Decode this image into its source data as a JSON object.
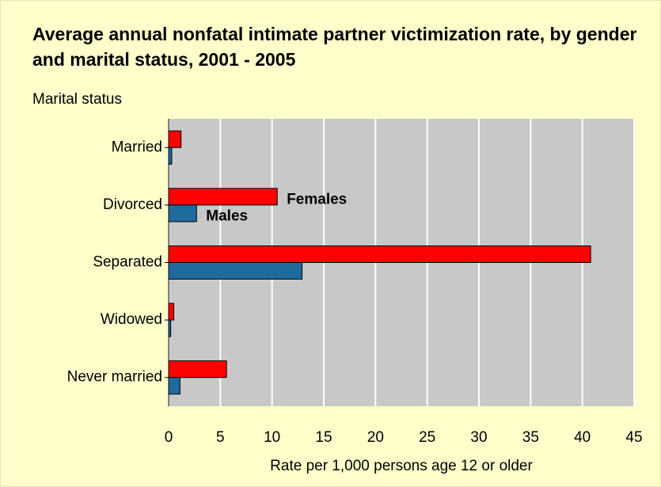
{
  "chart_data": {
    "type": "bar",
    "orientation": "horizontal",
    "title": "Average annual nonfatal intimate partner victimization rate, by gender and marital status, 2001 - 2005",
    "y_axis_label": "Marital status",
    "x_axis_label": "Rate per 1,000 persons age 12 or older",
    "categories": [
      "Married",
      "Divorced",
      "Separated",
      "Widowed",
      "Never married"
    ],
    "series": [
      {
        "name": "Females",
        "color": "#ff0000",
        "values": [
          1.2,
          10.5,
          40.8,
          0.5,
          5.6
        ]
      },
      {
        "name": "Males",
        "color": "#1f6b9e",
        "values": [
          0.3,
          2.7,
          12.9,
          0.2,
          1.1
        ]
      }
    ],
    "xlim": [
      0,
      45
    ],
    "xticks": [
      0,
      5,
      10,
      15,
      20,
      25,
      30,
      35,
      40,
      45
    ],
    "grid": true
  }
}
